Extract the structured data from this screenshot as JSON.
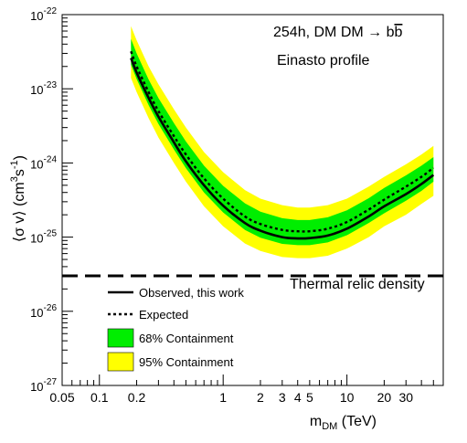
{
  "chart_data": {
    "type": "line",
    "scale": {
      "x": "log",
      "y": "log"
    },
    "xlabel": {
      "base": "m",
      "sub": "DM",
      "unit": " (TeV)"
    },
    "ylabel": {
      "pre": "⟨σ v⟩  (cm",
      "sup1": "3",
      "mid": "s",
      "sup2": "-1",
      "post": ")"
    },
    "xlim": [
      0.05,
      60
    ],
    "ylim": [
      1e-27,
      1e-22
    ],
    "x_ticks": [
      {
        "v": 0.05,
        "label": "0.05"
      },
      {
        "v": 0.1,
        "label": "0.1"
      },
      {
        "v": 0.2,
        "label": "0.2"
      },
      {
        "v": 1,
        "label": "1"
      },
      {
        "v": 2,
        "label": "2"
      },
      {
        "v": 3,
        "label": "3"
      },
      {
        "v": 4,
        "label": "4"
      },
      {
        "v": 5,
        "label": "5"
      },
      {
        "v": 10,
        "label": "10"
      },
      {
        "v": 20,
        "label": "20"
      },
      {
        "v": 30,
        "label": "30"
      }
    ],
    "y_ticks": [
      {
        "v": 1e-22,
        "base": "10",
        "exp": "-22"
      },
      {
        "v": 1e-23,
        "base": "10",
        "exp": "-23"
      },
      {
        "v": 1e-24,
        "base": "10",
        "exp": "-24"
      },
      {
        "v": 1e-25,
        "base": "10",
        "exp": "-25"
      },
      {
        "v": 1e-26,
        "base": "10",
        "exp": "-26"
      },
      {
        "v": 1e-27,
        "base": "10",
        "exp": "-27"
      }
    ],
    "annotations": {
      "title_line1": "254h, DM DM → b",
      "title_bbar": "b",
      "title_line2": "Einasto profile",
      "thermal_label": "Thermal relic density"
    },
    "thermal_relic": 3e-26,
    "x": [
      0.18,
      0.2,
      0.25,
      0.3,
      0.4,
      0.5,
      0.7,
      1,
      1.5,
      2,
      3,
      4,
      5,
      7,
      10,
      15,
      20,
      30,
      40,
      50
    ],
    "series": [
      {
        "name": "Observed, this work",
        "style": "solid",
        "values": [
          2.6e-23,
          1.65e-23,
          7.5e-24,
          4.2e-24,
          1.9e-24,
          1.05e-24,
          5e-25,
          2.65e-25,
          1.55e-25,
          1.22e-25,
          1e-25,
          9.6e-26,
          9.7e-26,
          1.05e-25,
          1.3e-25,
          1.9e-25,
          2.6e-25,
          3.8e-25,
          5.2e-25,
          6.9e-25
        ]
      },
      {
        "name": "Expected",
        "style": "dotted",
        "values": [
          3.2e-23,
          2e-23,
          9e-24,
          5e-24,
          2.3e-24,
          1.3e-24,
          6.2e-25,
          3.3e-25,
          1.9e-25,
          1.5e-25,
          1.25e-25,
          1.2e-25,
          1.2e-25,
          1.3e-25,
          1.6e-25,
          2.35e-25,
          3.2e-25,
          4.8e-25,
          6.5e-25,
          8.6e-25
        ]
      }
    ],
    "bands": [
      {
        "name": "95% Containment",
        "color": "#ffff00",
        "lower": [
          1.4e-23,
          9e-24,
          4e-24,
          2.2e-24,
          1e-24,
          5.6e-25,
          2.6e-25,
          1.4e-25,
          8.2e-26,
          6.5e-26,
          5.4e-26,
          5.2e-26,
          5.2e-26,
          5.6e-26,
          7e-26,
          1e-25,
          1.4e-25,
          2e-25,
          2.8e-25,
          3.6e-25
        ],
        "upper": [
          7e-23,
          4.5e-23,
          2e-23,
          1.15e-23,
          5.3e-24,
          3e-24,
          1.4e-24,
          7.5e-25,
          4.3e-25,
          3.3e-25,
          2.7e-25,
          2.5e-25,
          2.5e-25,
          2.7e-25,
          3.3e-25,
          4.8e-25,
          6.5e-25,
          9.6e-25,
          1.3e-24,
          1.7e-24
        ]
      },
      {
        "name": "68% Containment",
        "color": "#00ee00",
        "lower": [
          2.1e-23,
          1.35e-23,
          6e-24,
          3.35e-24,
          1.52e-24,
          8.5e-25,
          4e-25,
          2.15e-25,
          1.25e-25,
          9.8e-26,
          8.1e-26,
          7.8e-26,
          7.8e-26,
          8.5e-26,
          1.06e-25,
          1.55e-25,
          2.1e-25,
          3.1e-25,
          4.2e-25,
          5.6e-25
        ],
        "upper": [
          4.7e-23,
          3e-23,
          1.33e-23,
          7.5e-24,
          3.45e-24,
          1.95e-24,
          9.2e-25,
          4.9e-25,
          2.85e-25,
          2.2e-25,
          1.8e-25,
          1.7e-25,
          1.7e-25,
          1.85e-25,
          2.3e-25,
          3.35e-25,
          4.6e-25,
          6.8e-25,
          9.2e-25,
          1.2e-24
        ]
      }
    ],
    "legend": {
      "placement": "bottom-left",
      "items": [
        {
          "label": "Observed, this work",
          "kind": "solid-line"
        },
        {
          "label": "Expected",
          "kind": "dotted-line"
        },
        {
          "label": "68% Containment",
          "kind": "box",
          "color": "#00ee00"
        },
        {
          "label": "95% Containment",
          "kind": "box",
          "color": "#ffff00"
        }
      ]
    },
    "colors": {
      "band95": "#ffff00",
      "band68": "#00ee00",
      "line": "#000000",
      "frame": "#000000"
    }
  }
}
